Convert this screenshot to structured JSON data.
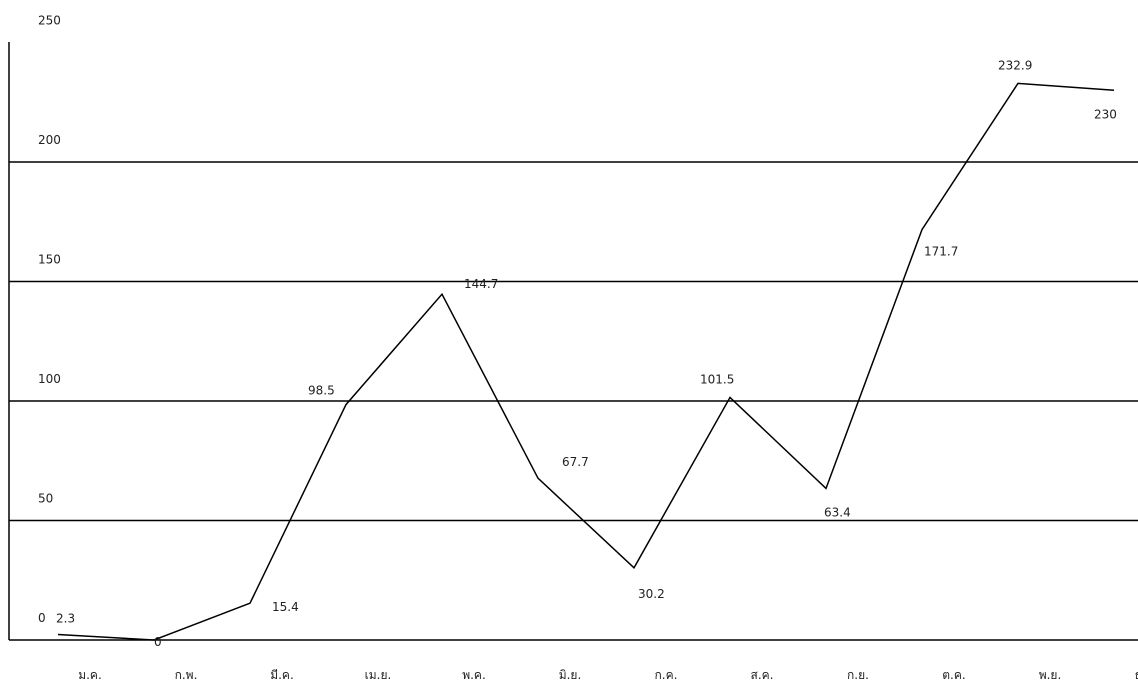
{
  "chart_data": {
    "type": "line",
    "title": "",
    "xlabel": "",
    "ylabel": "",
    "categories": [
      "ม.ค.",
      "ก.พ.",
      "มี.ค.",
      "เม.ย.",
      "พ.ค.",
      "มิ.ย.",
      "ก.ค.",
      "ส.ค.",
      "ก.ย.",
      "ต.ค.",
      "พ.ย.",
      "ธ.ค."
    ],
    "series": [
      {
        "values": [
          2.3,
          0,
          15.4,
          98.5,
          144.7,
          67.7,
          30.2,
          101.5,
          63.4,
          171.7,
          232.9,
          230
        ]
      }
    ],
    "data_labels": [
      "2.3",
      "0",
      "15.4",
      "98.5",
      "144.7",
      "67.7",
      "30.2",
      "101.5",
      "63.4",
      "171.7",
      "232.9",
      "230"
    ],
    "y_ticks": [
      0,
      50,
      100,
      150,
      200,
      250
    ],
    "y_tick_labels": [
      "0",
      "50",
      "100",
      "150",
      "200",
      "250"
    ],
    "ylim": [
      0,
      250
    ],
    "grid": true,
    "legend": "none",
    "colors": {
      "line": "#000000",
      "grid": "#000000",
      "text": "#222222"
    }
  }
}
